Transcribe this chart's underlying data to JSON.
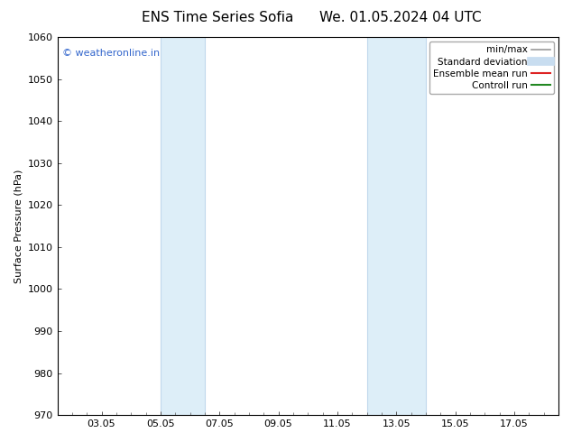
{
  "title_left": "ENS Time Series Sofia",
  "title_right": "We. 01.05.2024 04 UTC",
  "ylabel": "Surface Pressure (hPa)",
  "ylim": [
    970,
    1060
  ],
  "yticks": [
    970,
    980,
    990,
    1000,
    1010,
    1020,
    1030,
    1040,
    1050,
    1060
  ],
  "xlim": [
    0.5,
    17.5
  ],
  "xtick_labels": [
    "03.05",
    "05.05",
    "07.05",
    "09.05",
    "11.05",
    "13.05",
    "15.05",
    "17.05"
  ],
  "xtick_positions": [
    2,
    4,
    6,
    8,
    10,
    12,
    14,
    16
  ],
  "shaded_bands": [
    {
      "xmin": 4.0,
      "xmax": 5.5
    },
    {
      "xmin": 11.0,
      "xmax": 13.0
    }
  ],
  "shade_color": "#ddeef8",
  "shade_edge_color": "#c0d8ec",
  "watermark_text": "© weatheronline.in",
  "watermark_color": "#3366cc",
  "legend_items": [
    {
      "label": "min/max",
      "color": "#999999",
      "lw": 1.2,
      "linestyle": "-"
    },
    {
      "label": "Standard deviation",
      "color": "#c8ddf0",
      "lw": 7,
      "linestyle": "-"
    },
    {
      "label": "Ensemble mean run",
      "color": "#dd2222",
      "lw": 1.5,
      "linestyle": "-"
    },
    {
      "label": "Controll run",
      "color": "#228822",
      "lw": 1.5,
      "linestyle": "-"
    }
  ],
  "bg_color": "#ffffff",
  "plot_bg_color": "#ffffff",
  "spine_color": "#000000",
  "title_fontsize": 11,
  "axis_label_fontsize": 8,
  "tick_fontsize": 8,
  "legend_fontsize": 7.5,
  "watermark_fontsize": 8
}
